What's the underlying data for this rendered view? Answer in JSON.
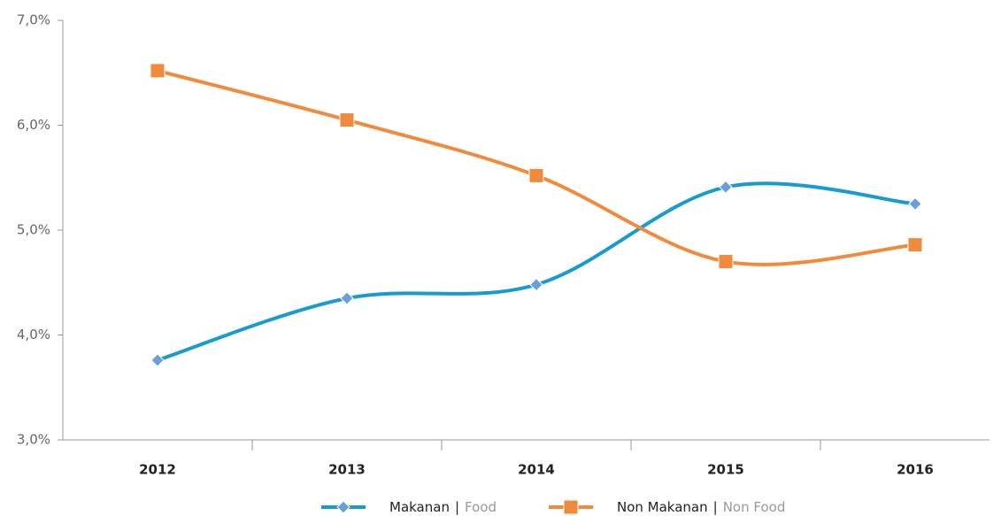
{
  "chart_data": {
    "type": "line",
    "categories": [
      "2012",
      "2013",
      "2014",
      "2015",
      "2016"
    ],
    "series": [
      {
        "name": "Makanan",
        "name_translation": "Food",
        "color": "#1a9bd0",
        "marker_color": "#6a9fd8",
        "marker": "diamond",
        "values": [
          3.76,
          4.35,
          4.48,
          5.41,
          5.25
        ]
      },
      {
        "name": "Non Makanan",
        "name_translation": "Non Food",
        "color": "#f08a3c",
        "marker_color": "#f08a3c",
        "marker": "square",
        "values": [
          6.52,
          6.05,
          5.52,
          4.7,
          4.86
        ]
      }
    ],
    "legend_separator": "|",
    "ylim": [
      3.0,
      7.0
    ],
    "yticks": [
      {
        "value": 3.0,
        "label": "3,0%"
      },
      {
        "value": 4.0,
        "label": "4,0%"
      },
      {
        "value": 5.0,
        "label": "5,0%"
      },
      {
        "value": 6.0,
        "label": "6,0%"
      },
      {
        "value": 7.0,
        "label": "7,0%"
      }
    ],
    "smooth": true,
    "grid": false,
    "legend": "bottom"
  }
}
